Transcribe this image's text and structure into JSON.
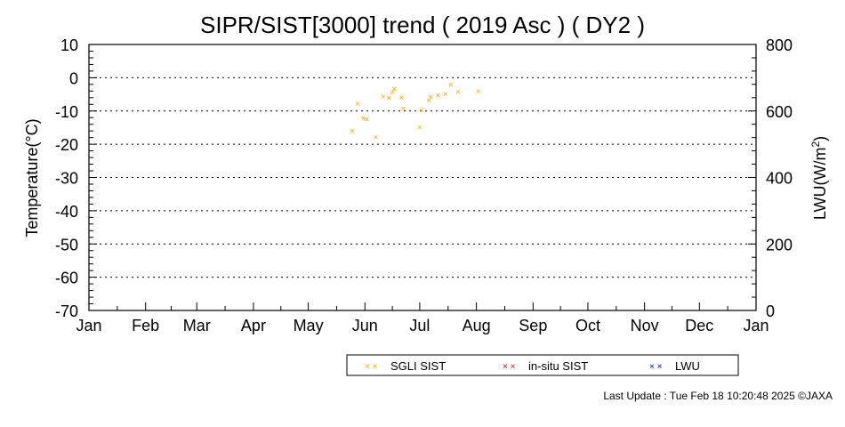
{
  "chart_data": {
    "type": "scatter",
    "title": "SIPR/SIST[3000] trend ( 2019 Asc ) ( DY2 )",
    "ylabel": "Temperature(°C)",
    "y2label_main": "LWU(W/m",
    "y2label_sup": "2",
    "y2label_end": ")",
    "ylim": [
      -70,
      10
    ],
    "y_ticks": [
      "10",
      "0",
      "-10",
      "-20",
      "-30",
      "-40",
      "-50",
      "-60",
      "-70"
    ],
    "y2lim": [
      0,
      800
    ],
    "y2_ticks": [
      "800",
      "600",
      "400",
      "200",
      "0"
    ],
    "x_range_days": [
      0,
      365
    ],
    "x_ticks": [
      "Jan",
      "Feb",
      "Mar",
      "Apr",
      "May",
      "Jun",
      "Jul",
      "Aug",
      "Sep",
      "Oct",
      "Nov",
      "Dec",
      "Jan"
    ],
    "grid": "horizontal dotted",
    "legend_position": "bottom",
    "series": [
      {
        "name": "SGLI SIST",
        "color": "#FFA500",
        "marker": "×",
        "points": [
          {
            "x": "2019-05-25",
            "y": -16.0
          },
          {
            "x": "2019-05-28",
            "y": -7.8
          },
          {
            "x": "2019-05-31",
            "y": -12.1
          },
          {
            "x": "2019-06-02",
            "y": -12.5
          },
          {
            "x": "2019-06-07",
            "y": -17.8
          },
          {
            "x": "2019-06-11",
            "y": -5.6
          },
          {
            "x": "2019-06-14",
            "y": -6.1
          },
          {
            "x": "2019-06-16",
            "y": -4.3
          },
          {
            "x": "2019-06-17",
            "y": -3.4
          },
          {
            "x": "2019-06-21",
            "y": -5.9
          },
          {
            "x": "2019-06-22",
            "y": -9.3
          },
          {
            "x": "2019-07-01",
            "y": -14.9
          },
          {
            "x": "2019-07-02",
            "y": -9.7
          },
          {
            "x": "2019-07-06",
            "y": -6.8
          },
          {
            "x": "2019-07-07",
            "y": -5.8
          },
          {
            "x": "2019-07-11",
            "y": -5.2
          },
          {
            "x": "2019-07-15",
            "y": -4.9
          },
          {
            "x": "2019-07-18",
            "y": -2.1
          },
          {
            "x": "2019-07-22",
            "y": -4.2
          },
          {
            "x": "2019-08-02",
            "y": -4.0
          }
        ]
      },
      {
        "name": "in-situ SIST",
        "color": "#E00000",
        "marker": "×",
        "points": []
      },
      {
        "name": "LWU",
        "color": "#0000D0",
        "marker": "×",
        "points": []
      }
    ]
  },
  "footer": {
    "text": "Last Update : Tue Feb 18 10:20:48 2025  ©JAXA"
  }
}
